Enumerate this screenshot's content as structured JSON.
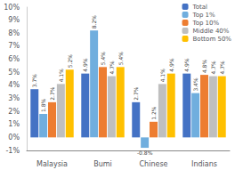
{
  "chart_data": {
    "type": "bar",
    "categories": [
      "Malaysia",
      "Bumi",
      "Chinese",
      "Indians"
    ],
    "series": [
      {
        "name": "Total",
        "color": "#4472C4",
        "values": [
          3.7,
          4.9,
          2.7,
          4.9
        ],
        "value_labels": [
          "3.7%",
          "4.9%",
          "2.7%",
          "4.9%"
        ]
      },
      {
        "name": "Top 1%",
        "color": "#70AEDE",
        "values": [
          1.8,
          8.2,
          -0.8,
          3.4
        ],
        "value_labels": [
          "1.8%",
          "8.2%",
          "-0.8%",
          "3.4%"
        ]
      },
      {
        "name": "Top 10%",
        "color": "#ED7D31",
        "values": [
          2.7,
          5.4,
          1.2,
          4.8
        ],
        "value_labels": [
          "2.7%",
          "5.4%",
          "1.2%",
          "4.8%"
        ]
      },
      {
        "name": "Middle 40%",
        "color": "#BFBFBF",
        "values": [
          4.1,
          4.7,
          4.1,
          4.7
        ],
        "value_labels": [
          "4.1%",
          "4.7%",
          "4.1%",
          "4.7%"
        ]
      },
      {
        "name": "Bottom 50%",
        "color": "#FFC000",
        "values": [
          5.2,
          5.4,
          4.9,
          4.7
        ],
        "value_labels": [
          "5.2%",
          "5.4%",
          "4.9%",
          "4.7%"
        ]
      }
    ],
    "ylim": [
      -1.0,
      10.0
    ],
    "yticks": [
      {
        "value": -1,
        "label": "-1%"
      },
      {
        "value": 0,
        "label": "0%"
      },
      {
        "value": 1,
        "label": "1%"
      },
      {
        "value": 2,
        "label": "2%"
      },
      {
        "value": 3,
        "label": "3%"
      },
      {
        "value": 4,
        "label": "4%"
      },
      {
        "value": 5,
        "label": "5%"
      },
      {
        "value": 6,
        "label": "6%"
      },
      {
        "value": 7,
        "label": "7%"
      },
      {
        "value": 8,
        "label": "8%"
      },
      {
        "value": 9,
        "label": "9%"
      },
      {
        "value": 10,
        "label": "10%"
      }
    ],
    "grid": false,
    "legend": "upper right",
    "data_labels": true
  }
}
